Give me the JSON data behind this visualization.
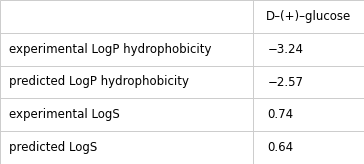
{
  "col_header": "D–(+)–glucose",
  "rows": [
    {
      "label": "experimental LogP hydrophobicity",
      "value": "−3.24"
    },
    {
      "label": "predicted LogP hydrophobicity",
      "value": "−2.57"
    },
    {
      "label": "experimental LogS",
      "value": "0.74"
    },
    {
      "label": "predicted LogS",
      "value": "0.64"
    }
  ],
  "background_color": "#ffffff",
  "border_color": "#cccccc",
  "text_color": "#000000",
  "header_fontsize": 8.5,
  "body_fontsize": 8.5,
  "col_split": 0.695,
  "fig_width": 3.64,
  "fig_height": 1.64,
  "dpi": 100
}
